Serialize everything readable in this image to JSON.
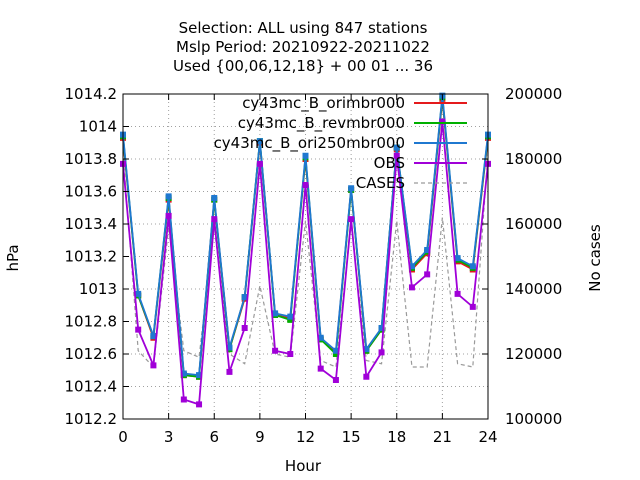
{
  "chart_data": {
    "type": "line",
    "title_lines": [
      "Selection: ALL using   847 stations",
      "Mslp   Period: 20210922-20211022",
      "Used {00,06,12,18} + 00 01 ... 36"
    ],
    "xlabel": "Hour",
    "ylabel": "hPa",
    "y2label": "No cases",
    "xlim": [
      0,
      24
    ],
    "ylim": [
      1012.2,
      1014.2
    ],
    "y2lim": [
      100000,
      200000
    ],
    "xticks": [
      "0",
      "3",
      "6",
      "9",
      "12",
      "15",
      "18",
      "21",
      "24"
    ],
    "yticks": [
      "1012.2",
      "1012.4",
      "1012.6",
      "1012.8",
      "1013",
      "1013.2",
      "1013.4",
      "1013.6",
      "1013.8",
      "1014",
      "1014.2"
    ],
    "y2ticks": [
      "100000",
      "120000",
      "140000",
      "160000",
      "180000",
      "200000"
    ],
    "grid": true,
    "legend_position": "top-right",
    "x": [
      0,
      1,
      2,
      3,
      4,
      5,
      6,
      7,
      8,
      9,
      10,
      11,
      12,
      13,
      14,
      15,
      16,
      17,
      18,
      19,
      20,
      21,
      22,
      23,
      24
    ],
    "series": [
      {
        "name": "cy43mc_B_orimbr000",
        "color": "#e41a1c",
        "axis": "y",
        "values": [
          1013.93,
          1012.96,
          1012.7,
          1013.55,
          1012.47,
          1012.46,
          1013.55,
          1012.63,
          1012.94,
          1013.9,
          1012.84,
          1012.82,
          1013.8,
          1012.69,
          1012.61,
          1013.61,
          1012.62,
          1012.75,
          1013.86,
          1013.12,
          1013.22,
          1014.17,
          1013.17,
          1013.12,
          1013.93
        ]
      },
      {
        "name": "cy43mc_B_revmbr000",
        "color": "#00b000",
        "axis": "y",
        "values": [
          1013.94,
          1012.96,
          1012.71,
          1013.56,
          1012.47,
          1012.46,
          1013.55,
          1012.63,
          1012.95,
          1013.91,
          1012.84,
          1012.81,
          1013.81,
          1012.69,
          1012.6,
          1013.61,
          1012.62,
          1012.75,
          1013.87,
          1013.13,
          1013.23,
          1014.18,
          1013.18,
          1013.13,
          1013.94
        ]
      },
      {
        "name": "cy43mc_B_ori250mbr000",
        "color": "#1f78d0",
        "axis": "y",
        "values": [
          1013.95,
          1012.97,
          1012.71,
          1013.57,
          1012.48,
          1012.47,
          1013.56,
          1012.64,
          1012.95,
          1013.91,
          1012.85,
          1012.83,
          1013.82,
          1012.7,
          1012.62,
          1013.62,
          1012.63,
          1012.76,
          1013.87,
          1013.14,
          1013.24,
          1014.19,
          1013.19,
          1013.14,
          1013.95
        ]
      },
      {
        "name": "OBS",
        "color": "#a000d8",
        "axis": "y",
        "values": [
          1013.77,
          1012.75,
          1012.53,
          1013.45,
          1012.32,
          1012.29,
          1013.43,
          1012.49,
          1012.76,
          1013.77,
          1012.62,
          1012.6,
          1013.64,
          1012.51,
          1012.44,
          1013.43,
          1012.46,
          1012.61,
          1013.82,
          1013.01,
          1013.09,
          1014.03,
          1012.97,
          1012.89,
          1013.77
        ]
      },
      {
        "name": "CASES",
        "color": "#9a9a9a",
        "axis": "y2",
        "dashed": true,
        "values": [
          182000,
          121000,
          116000,
          159000,
          121000,
          119000,
          159000,
          120000,
          117000,
          141000,
          120000,
          119000,
          161000,
          118000,
          116000,
          160000,
          118000,
          117000,
          161000,
          116000,
          116000,
          162000,
          117000,
          116000,
          182000
        ]
      }
    ]
  }
}
